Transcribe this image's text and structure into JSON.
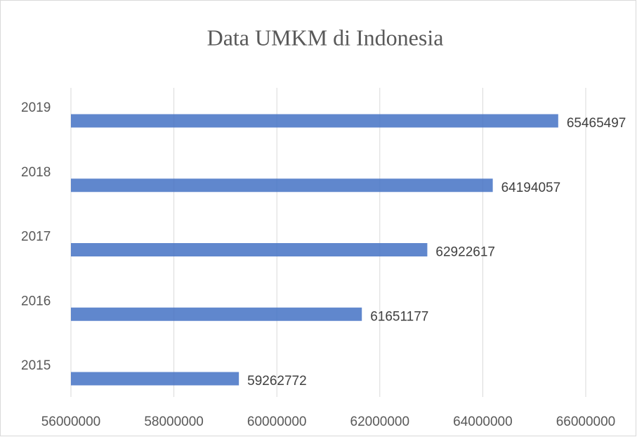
{
  "chart_data": {
    "type": "bar",
    "orientation": "horizontal",
    "title": "Data UMKM di Indonesia",
    "categories": [
      "2015",
      "2016",
      "2017",
      "2018",
      "2019"
    ],
    "values": [
      59262772,
      61651177,
      62922617,
      64194057,
      65465497
    ],
    "color": "#4472c4",
    "xlim": [
      56000000,
      66000000
    ],
    "xticks": [
      56000000,
      58000000,
      60000000,
      62000000,
      64000000,
      66000000
    ],
    "grid": true
  }
}
